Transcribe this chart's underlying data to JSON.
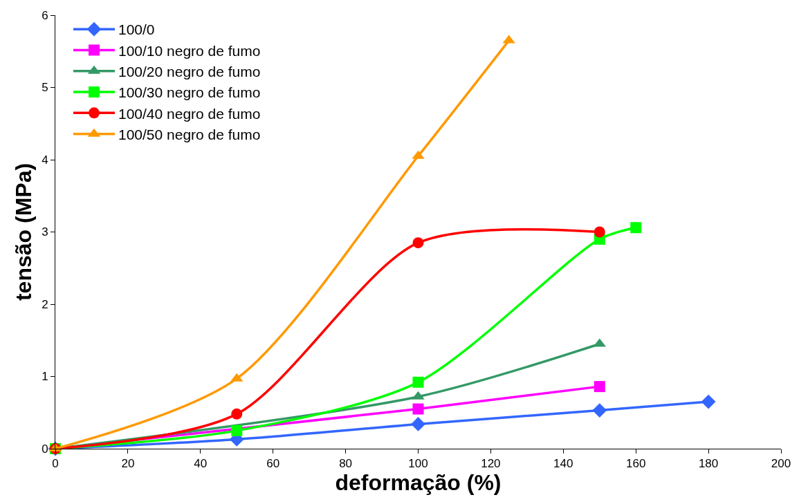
{
  "chart_data": {
    "type": "line",
    "xlabel": "deformação (%)",
    "ylabel": "tensão (MPa)",
    "xlim": [
      0,
      200
    ],
    "xticks": [
      0,
      20,
      40,
      60,
      80,
      100,
      120,
      140,
      160,
      180,
      200
    ],
    "ylim": [
      0,
      6
    ],
    "yticks": [
      0,
      1,
      2,
      3,
      4,
      5,
      6
    ],
    "grid": false,
    "legend": "top left",
    "line_style": "solid",
    "series": [
      {
        "name": "100/0",
        "color": "#3366ff",
        "marker": "diamond",
        "x": [
          0,
          50,
          100,
          150,
          180
        ],
        "values": [
          0,
          0.13,
          0.34,
          0.53,
          0.65
        ]
      },
      {
        "name": "100/10 negro de fumo",
        "color": "#ff00ff",
        "marker": "square",
        "x": [
          0,
          50,
          100,
          150
        ],
        "values": [
          0,
          null,
          0.55,
          0.86
        ]
      },
      {
        "name": "100/20 negro de fumo",
        "color": "#339966",
        "marker": "triangle",
        "x": [
          0,
          50,
          100,
          150
        ],
        "values": [
          0,
          null,
          0.72,
          1.45
        ]
      },
      {
        "name": "100/30 negro de fumo",
        "color": "#00ff00",
        "marker": "square",
        "x": [
          0,
          50,
          100,
          150,
          160
        ],
        "values": [
          0,
          0.25,
          0.92,
          2.9,
          3.06
        ]
      },
      {
        "name": "100/40 negro de fumo",
        "color": "#ff0000",
        "marker": "circle",
        "x": [
          0,
          50,
          100,
          150
        ],
        "values": [
          0,
          0.48,
          2.85,
          3.0
        ]
      },
      {
        "name": "100/50 negro de fumo",
        "color": "#ff9900",
        "marker": "triangle",
        "x": [
          0,
          50,
          100,
          125
        ],
        "values": [
          0,
          0.97,
          4.05,
          5.65
        ]
      }
    ]
  }
}
